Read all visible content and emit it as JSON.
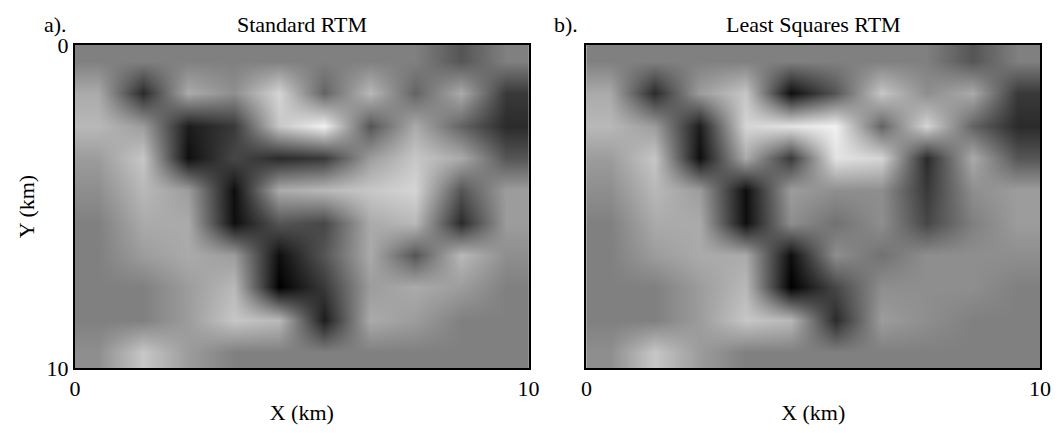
{
  "chart_data": [
    {
      "type": "heatmap",
      "label": "a).",
      "title": "Standard RTM",
      "x_label": "X (km)",
      "y_label": "Y (km)",
      "xlim": [
        0,
        10
      ],
      "xticks": [
        0,
        10
      ],
      "ylim": [
        10,
        0
      ],
      "yticks": [
        0,
        10
      ],
      "x": [
        0.5,
        1.5,
        2.5,
        3.5,
        4.5,
        5.5,
        6.5,
        7.5,
        8.5,
        9.5
      ],
      "y": [
        0.5,
        1.5,
        2.5,
        3.5,
        4.5,
        5.5,
        6.5,
        7.5,
        8.5,
        9.5
      ],
      "cells": [
        [
          0,
          0,
          0,
          0,
          0,
          0,
          0,
          0,
          -0.3,
          0
        ],
        [
          0.3,
          -0.6,
          0.3,
          0.1,
          0.6,
          -0.2,
          0.4,
          -0.2,
          0.3,
          -0.5
        ],
        [
          0.4,
          0.2,
          -0.7,
          -0.5,
          0.5,
          0.8,
          -0.3,
          0.3,
          -0.2,
          -0.6
        ],
        [
          0.2,
          0.5,
          -0.8,
          -0.4,
          -0.6,
          -0.5,
          0.2,
          0.5,
          0.3,
          -0.3
        ],
        [
          0.1,
          0.4,
          0.2,
          -0.8,
          0.3,
          0.4,
          0.5,
          0.6,
          -0.3,
          0.2
        ],
        [
          0,
          0.3,
          0.3,
          -0.8,
          -0.3,
          -0.4,
          0.3,
          0.4,
          -0.6,
          0.2
        ],
        [
          0,
          0.2,
          0.3,
          0.2,
          -0.8,
          -0.3,
          0.3,
          -0.3,
          0.4,
          0.1
        ],
        [
          0,
          0,
          0.2,
          0.4,
          -0.9,
          -0.5,
          0.2,
          0.3,
          0.2,
          0
        ],
        [
          0,
          0,
          0.2,
          0.5,
          0.4,
          -0.7,
          0.3,
          0.2,
          0,
          0
        ],
        [
          0.1,
          0.5,
          0.2,
          0,
          0,
          0,
          0,
          0,
          0,
          0
        ]
      ]
    },
    {
      "type": "heatmap",
      "label": "b).",
      "title": "Least Squares RTM",
      "x_label": "X (km)",
      "tick_labels": "x",
      "xlim": [
        0,
        10
      ],
      "xticks": [
        0,
        10
      ],
      "ylim": [
        10,
        0
      ],
      "yticks": [
        0,
        10
      ],
      "x": [
        0.5,
        1.5,
        2.5,
        3.5,
        4.5,
        5.5,
        6.5,
        7.5,
        8.5,
        9.5
      ],
      "y": [
        0.5,
        1.5,
        2.5,
        3.5,
        4.5,
        5.5,
        6.5,
        7.5,
        8.5,
        9.5
      ],
      "cells": [
        [
          0,
          0,
          0,
          0,
          0,
          0,
          0,
          0,
          -0.3,
          0
        ],
        [
          0.3,
          -0.6,
          0.2,
          0.5,
          -0.8,
          -0.3,
          0.5,
          0.1,
          0.3,
          -0.5
        ],
        [
          0.4,
          0.2,
          -0.7,
          0.6,
          0.7,
          0.8,
          -0.2,
          0.6,
          -0.2,
          -0.6
        ],
        [
          0.2,
          0.5,
          -0.8,
          0.3,
          -0.5,
          0.7,
          0.6,
          -0.6,
          0.3,
          -0.3
        ],
        [
          0.1,
          0.4,
          0.2,
          -0.8,
          0.2,
          0.1,
          0.1,
          -0.5,
          0.1,
          0.2
        ],
        [
          0,
          0.3,
          0.3,
          -0.8,
          0.1,
          -0.1,
          0.1,
          -0.4,
          0,
          0.2
        ],
        [
          0,
          0.2,
          0.3,
          0.3,
          -0.8,
          0.1,
          -0.1,
          0.1,
          0.1,
          0.1
        ],
        [
          0,
          0,
          0.2,
          0.4,
          -0.9,
          -0.4,
          0.1,
          0.1,
          0.1,
          0
        ],
        [
          0,
          0,
          0.2,
          0.5,
          0.4,
          -0.6,
          0.2,
          0.1,
          0,
          0
        ],
        [
          0.1,
          0.5,
          0.2,
          0,
          0,
          0,
          0,
          0,
          0,
          0
        ]
      ]
    }
  ]
}
